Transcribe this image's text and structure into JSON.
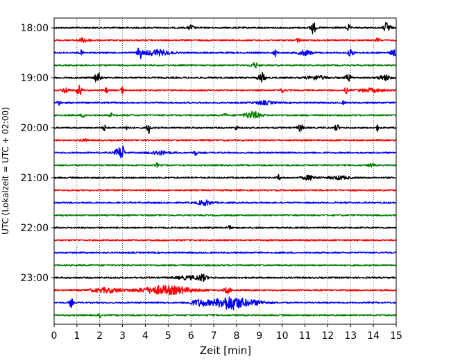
{
  "chart_data": {
    "type": "line",
    "title": "",
    "xlabel": "Zeit  [min]",
    "ylabel": "UTC (Lokalzeit = UTC + 02:00)",
    "xlim": [
      0,
      15
    ],
    "x_ticks": [
      0,
      1,
      2,
      3,
      4,
      5,
      6,
      7,
      8,
      9,
      10,
      11,
      12,
      13,
      14,
      15
    ],
    "x_grid": true,
    "y_tick_labels": [
      "18:00",
      "19:00",
      "20:00",
      "21:00",
      "22:00",
      "23:00"
    ],
    "traces": [
      {
        "start": "18:00",
        "color": "#000000",
        "events": [
          {
            "t": 6.0,
            "amp": 0.45,
            "w": 0.08
          },
          {
            "t": 11.35,
            "amp": 1.0,
            "w": 0.08
          },
          {
            "t": 12.9,
            "amp": 0.5,
            "w": 0.06
          },
          {
            "t": 14.6,
            "amp": 0.9,
            "w": 0.1
          }
        ]
      },
      {
        "start": "18:15",
        "color": "#ff0000",
        "events": [
          {
            "t": 1.3,
            "amp": 0.3,
            "w": 0.2
          },
          {
            "t": 10.7,
            "amp": 0.4,
            "w": 0.05
          },
          {
            "t": 14.2,
            "amp": 0.4,
            "w": 0.05
          }
        ]
      },
      {
        "start": "18:30",
        "color": "#0000ff",
        "events": [
          {
            "t": 1.2,
            "amp": 0.35,
            "w": 0.05
          },
          {
            "t": 3.75,
            "amp": 1.0,
            "w": 0.07
          },
          {
            "t": 4.5,
            "amp": 0.45,
            "w": 0.4
          },
          {
            "t": 9.7,
            "amp": 0.6,
            "w": 0.05
          },
          {
            "t": 11.0,
            "amp": 0.4,
            "w": 0.2
          },
          {
            "t": 13.0,
            "amp": 0.55,
            "w": 0.08
          },
          {
            "t": 14.9,
            "amp": 0.5,
            "w": 0.1
          }
        ]
      },
      {
        "start": "18:45",
        "color": "#008000",
        "events": [
          {
            "t": 8.8,
            "amp": 0.4,
            "w": 0.12
          }
        ]
      },
      {
        "start": "19:00",
        "color": "#000000",
        "events": [
          {
            "t": 1.9,
            "amp": 1.0,
            "w": 0.08
          },
          {
            "t": 9.1,
            "amp": 0.8,
            "w": 0.1
          },
          {
            "t": 11.5,
            "amp": 0.3,
            "w": 0.3
          },
          {
            "t": 12.9,
            "amp": 0.5,
            "w": 0.1
          },
          {
            "t": 14.5,
            "amp": 0.4,
            "w": 0.2
          }
        ]
      },
      {
        "start": "19:15",
        "color": "#ff0000",
        "events": [
          {
            "t": 0.5,
            "amp": 0.5,
            "w": 0.1
          },
          {
            "t": 1.1,
            "amp": 0.8,
            "w": 0.08
          },
          {
            "t": 2.3,
            "amp": 0.4,
            "w": 0.05
          },
          {
            "t": 3.0,
            "amp": 0.55,
            "w": 0.05
          },
          {
            "t": 10.0,
            "amp": 0.5,
            "w": 0.05
          },
          {
            "t": 12.8,
            "amp": 0.45,
            "w": 0.05
          },
          {
            "t": 13.9,
            "amp": 0.25,
            "w": 0.4
          }
        ]
      },
      {
        "start": "19:30",
        "color": "#0000ff",
        "events": [
          {
            "t": 0.2,
            "amp": 0.4,
            "w": 0.05
          },
          {
            "t": 9.2,
            "amp": 0.25,
            "w": 0.3
          },
          {
            "t": 12.7,
            "amp": 0.25,
            "w": 0.05
          }
        ]
      },
      {
        "start": "19:45",
        "color": "#008000",
        "events": [
          {
            "t": 1.3,
            "amp": 0.25,
            "w": 0.1
          },
          {
            "t": 2.5,
            "amp": 0.3,
            "w": 0.05
          },
          {
            "t": 7.5,
            "amp": 0.3,
            "w": 0.05
          },
          {
            "t": 8.7,
            "amp": 0.55,
            "w": 0.25
          }
        ]
      },
      {
        "start": "20:00",
        "color": "#000000",
        "events": [
          {
            "t": 2.2,
            "amp": 0.45,
            "w": 0.05
          },
          {
            "t": 3.2,
            "amp": 0.4,
            "w": 0.05
          },
          {
            "t": 4.15,
            "amp": 0.9,
            "w": 0.06
          },
          {
            "t": 8.0,
            "amp": 0.3,
            "w": 0.05
          },
          {
            "t": 10.8,
            "amp": 0.6,
            "w": 0.08
          },
          {
            "t": 12.4,
            "amp": 0.55,
            "w": 0.06
          },
          {
            "t": 14.2,
            "amp": 0.5,
            "w": 0.05
          }
        ]
      },
      {
        "start": "20:15",
        "color": "#ff0000",
        "events": [
          {
            "t": 1.3,
            "amp": 0.2,
            "w": 0.1
          }
        ]
      },
      {
        "start": "20:30",
        "color": "#0000ff",
        "events": [
          {
            "t": 2.85,
            "amp": 0.8,
            "w": 0.12
          },
          {
            "t": 3.0,
            "amp": 1.0,
            "w": 0.05
          },
          {
            "t": 4.6,
            "amp": 0.3,
            "w": 0.3
          },
          {
            "t": 6.2,
            "amp": 0.45,
            "w": 0.05
          }
        ]
      },
      {
        "start": "20:45",
        "color": "#008000",
        "events": [
          {
            "t": 4.5,
            "amp": 0.3,
            "w": 0.05
          },
          {
            "t": 13.9,
            "amp": 0.25,
            "w": 0.1
          }
        ]
      },
      {
        "start": "21:00",
        "color": "#000000",
        "events": [
          {
            "t": 9.85,
            "amp": 0.55,
            "w": 0.04
          },
          {
            "t": 11.2,
            "amp": 0.35,
            "w": 0.2
          },
          {
            "t": 12.5,
            "amp": 0.25,
            "w": 0.3
          }
        ]
      },
      {
        "start": "21:15",
        "color": "#ff0000",
        "events": []
      },
      {
        "start": "21:30",
        "color": "#0000ff",
        "events": [
          {
            "t": 6.6,
            "amp": 0.4,
            "w": 0.2
          }
        ]
      },
      {
        "start": "21:45",
        "color": "#008000",
        "events": []
      },
      {
        "start": "22:00",
        "color": "#000000",
        "events": [
          {
            "t": 7.7,
            "amp": 0.3,
            "w": 0.05
          }
        ]
      },
      {
        "start": "22:15",
        "color": "#ff0000",
        "events": []
      },
      {
        "start": "22:30",
        "color": "#0000ff",
        "events": []
      },
      {
        "start": "22:45",
        "color": "#008000",
        "events": []
      },
      {
        "start": "23:00",
        "color": "#000000",
        "events": [
          {
            "t": 5.9,
            "amp": 0.25,
            "w": 0.4
          },
          {
            "t": 6.5,
            "amp": 0.45,
            "w": 0.15
          }
        ]
      },
      {
        "start": "23:15",
        "color": "#ff0000",
        "events": [
          {
            "t": 2.3,
            "amp": 0.35,
            "w": 0.5
          },
          {
            "t": 4.9,
            "amp": 0.65,
            "w": 0.8
          },
          {
            "t": 7.6,
            "amp": 0.5,
            "w": 0.1
          }
        ]
      },
      {
        "start": "23:30",
        "color": "#0000ff",
        "events": [
          {
            "t": 0.75,
            "amp": 0.8,
            "w": 0.05
          },
          {
            "t": 6.4,
            "amp": 0.5,
            "w": 0.3
          },
          {
            "t": 7.7,
            "amp": 1.1,
            "w": 0.45
          },
          {
            "t": 8.8,
            "amp": 0.3,
            "w": 0.4
          }
        ]
      },
      {
        "start": "23:45",
        "color": "#008000",
        "events": [
          {
            "t": 2.0,
            "amp": 0.3,
            "w": 0.05
          }
        ]
      }
    ]
  }
}
